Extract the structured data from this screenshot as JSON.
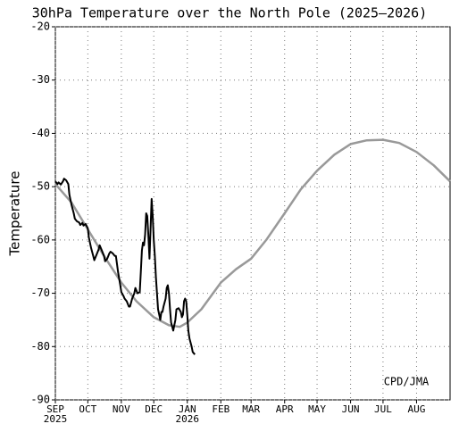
{
  "chart_data": {
    "type": "line",
    "title": "30hPa Temperature over the North Pole (2025–2026)",
    "y_label": "Temperature",
    "annotation": "CPD/JMA",
    "xlim": [
      0,
      365
    ],
    "ylim": [
      -90,
      -20
    ],
    "yticks": [
      -90,
      -80,
      -70,
      -60,
      -50,
      -40,
      -30,
      -20
    ],
    "xticks": [
      {
        "value": 0,
        "label": "SEP"
      },
      {
        "value": 30,
        "label": "OCT"
      },
      {
        "value": 61,
        "label": "NOV"
      },
      {
        "value": 91,
        "label": "DEC"
      },
      {
        "value": 122,
        "label": "JAN"
      },
      {
        "value": 153,
        "label": "FEB"
      },
      {
        "value": 181,
        "label": "MAR"
      },
      {
        "value": 212,
        "label": "APR"
      },
      {
        "value": 242,
        "label": "MAY"
      },
      {
        "value": 273,
        "label": "JUN"
      },
      {
        "value": 303,
        "label": "JUL"
      },
      {
        "value": 334,
        "label": "AUG"
      }
    ],
    "year_labels": [
      {
        "value": 0,
        "label": "2025"
      },
      {
        "value": 122,
        "label": "2026"
      }
    ],
    "grid": true,
    "series": [
      {
        "color": "#999999",
        "x": [
          0,
          15,
          30,
          45,
          61,
          75,
          91,
          105,
          115,
          122,
          135,
          153,
          167,
          181,
          195,
          212,
          227,
          242,
          258,
          273,
          288,
          303,
          318,
          334,
          350,
          365
        ],
        "values": [
          -49.5,
          -53,
          -58,
          -63,
          -68,
          -71.5,
          -74.5,
          -76,
          -76.3,
          -75.5,
          -73,
          -68,
          -65.5,
          -63.5,
          -60,
          -55,
          -50.5,
          -47,
          -44,
          -42,
          -41.3,
          -41.2,
          -41.8,
          -43.5,
          -46,
          -49
        ]
      },
      {
        "color": "#000000",
        "x": [
          0,
          2,
          3,
          5,
          7,
          8,
          10,
          12,
          13,
          15,
          17,
          18,
          20,
          22,
          23,
          25,
          26,
          28,
          30,
          31,
          33,
          35,
          36,
          38,
          40,
          41,
          43,
          45,
          46,
          48,
          50,
          51,
          53,
          55,
          56,
          58,
          60,
          61,
          63,
          64,
          66,
          68,
          69,
          71,
          73,
          74,
          76,
          78,
          79,
          80,
          81,
          82,
          83,
          84,
          85,
          86,
          87,
          88,
          89,
          90,
          91,
          92,
          93,
          94,
          95,
          96,
          97,
          98,
          99,
          100,
          102,
          103,
          104,
          105,
          106,
          107,
          109,
          111,
          112,
          114,
          116,
          117,
          118,
          119,
          120,
          121,
          122,
          123,
          124,
          126,
          127,
          129
        ],
        "values": [
          -49,
          -49.5,
          -49.2,
          -49.6,
          -49,
          -48.5,
          -48.8,
          -49.5,
          -51.5,
          -53.5,
          -55,
          -56,
          -56.5,
          -56.7,
          -57.2,
          -56.8,
          -57.3,
          -57,
          -57.8,
          -59.5,
          -61.5,
          -63,
          -63.8,
          -62.8,
          -61.8,
          -61,
          -62,
          -63,
          -64,
          -63.5,
          -62.5,
          -62.2,
          -62.5,
          -63,
          -63,
          -66,
          -68.5,
          -69.8,
          -70.5,
          -71,
          -71.5,
          -72.5,
          -72.5,
          -71,
          -70,
          -69,
          -70,
          -69.8,
          -66,
          -62,
          -60.5,
          -61,
          -59,
          -55,
          -55.5,
          -59,
          -63.5,
          -58,
          -52.3,
          -55.5,
          -60,
          -63,
          -67,
          -70,
          -73,
          -74,
          -75,
          -73.5,
          -73.5,
          -72.5,
          -71,
          -69,
          -68.5,
          -70,
          -73,
          -75.5,
          -77,
          -75,
          -73,
          -72.8,
          -73.5,
          -74.5,
          -74,
          -71.5,
          -71,
          -71.5,
          -74,
          -77,
          -78.5,
          -80,
          -81,
          -81.5
        ]
      }
    ]
  }
}
